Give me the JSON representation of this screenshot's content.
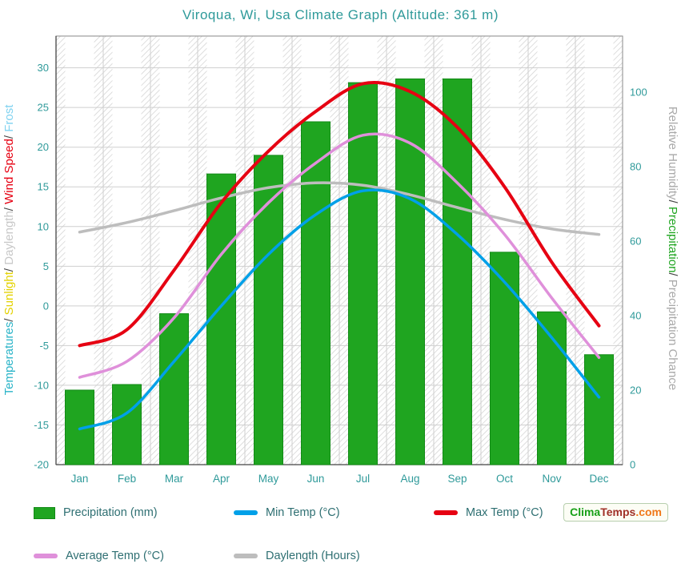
{
  "colors": {
    "title": "#2f9a9a",
    "axis_text": "#2f9a9a",
    "legend_text": "#2e6f72",
    "grid": "#cfcfcf",
    "hatch": "#d0d0d0",
    "plot_border": "#8a8a8a",
    "axis_line": "#444444",
    "bar_border": "#128a16",
    "logo_clima": "#18a018",
    "logo_temps": "#a03028",
    "logo_dotcom": "#f07818"
  },
  "chart_data": {
    "type": "composite",
    "title": "Viroqua, Wi, Usa Climate Graph (Altitude: 361 m)",
    "categories": [
      "Jan",
      "Feb",
      "Mar",
      "Apr",
      "May",
      "Jun",
      "Jul",
      "Aug",
      "Sep",
      "Oct",
      "Nov",
      "Dec"
    ],
    "series": [
      {
        "name": "Precipitation (mm)",
        "type": "bar",
        "axis": "right",
        "color": "#1fa520",
        "values": [
          20,
          21.5,
          40.5,
          78,
          83,
          92,
          102.5,
          103.5,
          103.5,
          57,
          41,
          29.5
        ]
      },
      {
        "name": "Min Temp (°C)",
        "type": "line",
        "axis": "left",
        "color": "#00a0e8",
        "values": [
          -15.5,
          -13.5,
          -7,
          0,
          6.5,
          11.5,
          14.5,
          13.5,
          9,
          3,
          -4,
          -11.5
        ]
      },
      {
        "name": "Max Temp (°C)",
        "type": "line",
        "axis": "left",
        "color": "#e60012",
        "values": [
          -5,
          -3,
          4.5,
          13,
          19.5,
          24.5,
          28,
          27,
          22.5,
          15,
          5.5,
          -2.5
        ]
      },
      {
        "name": "Average Temp (°C)",
        "type": "line",
        "axis": "left",
        "color": "#df90da",
        "values": [
          -9,
          -7,
          -1.5,
          6.5,
          13,
          18,
          21.5,
          20.5,
          15.5,
          9,
          1,
          -6.5
        ]
      },
      {
        "name": "Daylength (Hours)",
        "type": "line",
        "axis": "left",
        "color": "#bdbdbd",
        "values": [
          9.3,
          10.5,
          12,
          13.6,
          14.9,
          15.5,
          15.2,
          14,
          12.4,
          10.9,
          9.7,
          9
        ]
      }
    ],
    "left_axis": {
      "min": -20,
      "max": 34,
      "ticks": [
        30,
        25,
        20,
        15,
        10,
        5,
        0,
        -5,
        -10,
        -15,
        -20
      ],
      "label_segments": [
        {
          "text": "Temperatures",
          "color": "#2ab4c8"
        },
        {
          "text": "/ ",
          "color": "#444444"
        },
        {
          "text": "Sunlight",
          "color": "#e3d200"
        },
        {
          "text": "/ ",
          "color": "#444444"
        },
        {
          "text": "Daylength",
          "color": "#c8c8c8"
        },
        {
          "text": "/ ",
          "color": "#444444"
        },
        {
          "text": "Wind Speed",
          "color": "#e60012"
        },
        {
          "text": "/ ",
          "color": "#444444"
        },
        {
          "text": "Frost",
          "color": "#7fd2f0"
        }
      ]
    },
    "right_axis": {
      "min": 0,
      "max": 115,
      "ticks": [
        0,
        20,
        40,
        60,
        80,
        100
      ],
      "label_segments": [
        {
          "text": "Relative Humidity",
          "color": "#a9a9a9"
        },
        {
          "text": "/ ",
          "color": "#444444"
        },
        {
          "text": "Precipitation",
          "color": "#1fa520"
        },
        {
          "text": "/ ",
          "color": "#444444"
        },
        {
          "text": "Precipitation Chance",
          "color": "#a9a9a9"
        }
      ]
    },
    "grid": true,
    "legend_position": "bottom"
  },
  "legend": {
    "rows": [
      [
        {
          "label": "Precipitation (mm)",
          "swatch": "bar",
          "color": "#1fa520"
        },
        {
          "label": "Min Temp (°C)",
          "swatch": "line",
          "color": "#00a0e8"
        },
        {
          "label": "Max Temp (°C)",
          "swatch": "line",
          "color": "#e60012"
        }
      ],
      [
        {
          "label": "Average Temp (°C)",
          "swatch": "line",
          "color": "#df90da"
        },
        {
          "label": "Daylength (Hours)",
          "swatch": "line",
          "color": "#bdbdbd"
        }
      ]
    ]
  },
  "watermark": {
    "clima": "Clima",
    "temps": "Temps",
    "dotcom": ".com"
  }
}
